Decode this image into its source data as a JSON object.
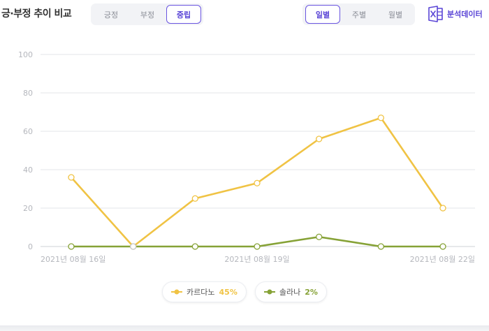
{
  "header": {
    "title": "긍·부정 추이 비교",
    "sentiment_tabs": [
      {
        "label": "긍정",
        "active": false
      },
      {
        "label": "부정",
        "active": false
      },
      {
        "label": "중립",
        "active": true
      }
    ],
    "period_tabs": [
      {
        "label": "일별",
        "active": true
      },
      {
        "label": "주별",
        "active": false
      },
      {
        "label": "월별",
        "active": false
      }
    ],
    "export_label": "분석데이터",
    "export_icon": "excel-icon"
  },
  "colors": {
    "accent": "#5a45d6",
    "series1": "#f0c344",
    "series2": "#86a236",
    "grid": "#e3e4e8",
    "tick": "#b5b7bd"
  },
  "chart_data": {
    "type": "line",
    "x": [
      "2021-08-16",
      "2021-08-17",
      "2021-08-18",
      "2021-08-19",
      "2021-08-20",
      "2021-08-21",
      "2021-08-22"
    ],
    "xticks": [
      "2021년 08월 16일",
      "2021년 08월 19일",
      "2021년 08월 22일"
    ],
    "yticks": [
      0,
      20,
      40,
      60,
      80,
      100
    ],
    "ylim": [
      0,
      100
    ],
    "grid": true,
    "legend_position": "bottom",
    "series": [
      {
        "name": "카르다노",
        "percent": "45%",
        "color": "#f0c344",
        "values": [
          36,
          0,
          25,
          33,
          56,
          67,
          20
        ]
      },
      {
        "name": "솔라나",
        "percent": "2%",
        "color": "#86a236",
        "values": [
          0,
          0,
          0,
          0,
          5,
          0,
          0
        ]
      }
    ]
  }
}
